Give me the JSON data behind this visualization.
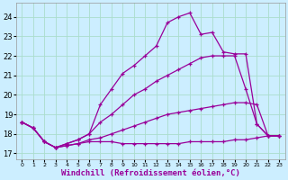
{
  "background_color": "#cceeff",
  "grid_color": "#aaddcc",
  "line_color": "#990099",
  "marker": "+",
  "xlabel": "Windchill (Refroidissement éolien,°C)",
  "ylabel_ticks": [
    17,
    18,
    19,
    20,
    21,
    22,
    23,
    24
  ],
  "xlim": [
    -0.5,
    23.5
  ],
  "ylim": [
    16.7,
    24.7
  ],
  "series": [
    {
      "x": [
        0,
        1,
        2,
        3,
        4,
        5,
        6,
        7,
        8,
        9,
        10,
        11,
        12,
        13,
        14,
        15,
        16,
        17,
        18,
        19,
        20,
        21,
        22,
        23
      ],
      "y": [
        18.6,
        18.3,
        17.6,
        17.3,
        17.4,
        17.5,
        17.6,
        17.6,
        17.6,
        17.5,
        17.5,
        17.5,
        17.5,
        17.5,
        17.5,
        17.6,
        17.6,
        17.6,
        17.6,
        17.7,
        17.7,
        17.8,
        17.9,
        17.9
      ]
    },
    {
      "x": [
        0,
        1,
        2,
        3,
        4,
        5,
        6,
        7,
        8,
        9,
        10,
        11,
        12,
        13,
        14,
        15,
        16,
        17,
        18,
        19,
        20,
        21,
        22,
        23
      ],
      "y": [
        18.6,
        18.3,
        17.6,
        17.3,
        17.4,
        17.5,
        17.7,
        17.8,
        18.0,
        18.2,
        18.4,
        18.6,
        18.8,
        19.0,
        19.1,
        19.2,
        19.3,
        19.4,
        19.5,
        19.6,
        19.6,
        19.5,
        17.9,
        17.9
      ]
    },
    {
      "x": [
        0,
        1,
        2,
        3,
        4,
        5,
        6,
        7,
        8,
        9,
        10,
        11,
        12,
        13,
        14,
        15,
        16,
        17,
        18,
        19,
        20,
        21,
        22,
        23
      ],
      "y": [
        18.6,
        18.3,
        17.6,
        17.3,
        17.5,
        17.7,
        18.0,
        18.6,
        19.0,
        19.5,
        20.0,
        20.3,
        20.7,
        21.0,
        21.3,
        21.6,
        21.9,
        22.0,
        22.0,
        22.0,
        20.3,
        18.5,
        17.9,
        17.9
      ]
    },
    {
      "x": [
        0,
        1,
        2,
        3,
        4,
        5,
        6,
        7,
        8,
        9,
        10,
        11,
        12,
        13,
        14,
        15,
        16,
        17,
        18,
        19,
        20,
        21,
        22,
        23
      ],
      "y": [
        18.6,
        18.3,
        17.6,
        17.3,
        17.5,
        17.7,
        18.0,
        19.5,
        20.3,
        21.1,
        21.5,
        22.0,
        22.5,
        23.7,
        24.0,
        24.2,
        23.1,
        23.2,
        22.2,
        22.1,
        22.1,
        18.5,
        17.9,
        17.9
      ]
    }
  ]
}
